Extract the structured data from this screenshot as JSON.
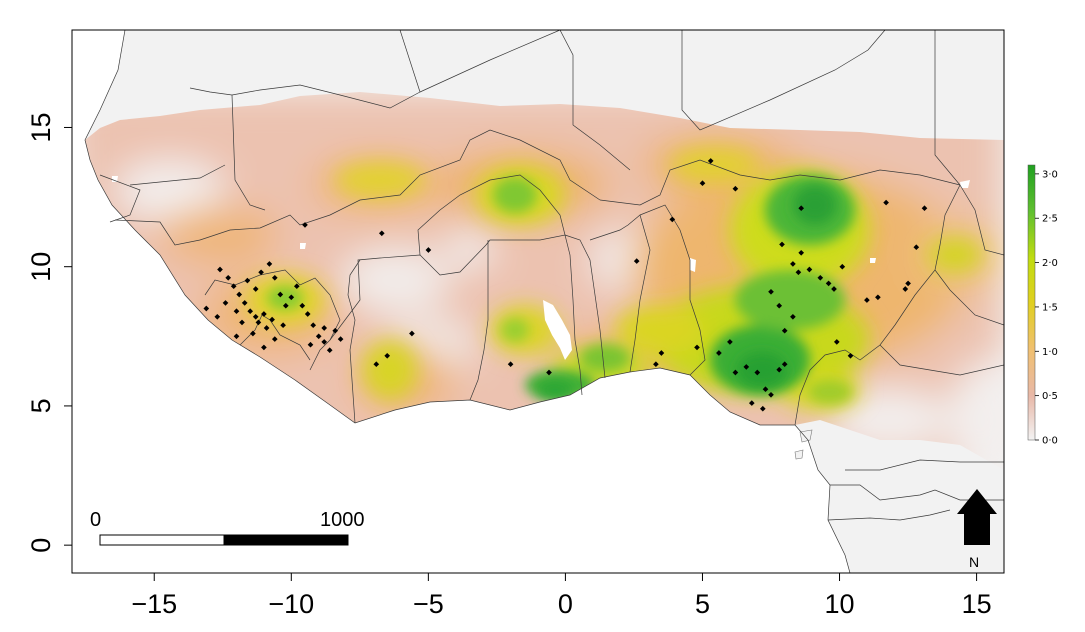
{
  "map": {
    "x_ticks": [
      "−15",
      "−10",
      "−5",
      "0",
      "5",
      "10",
      "15"
    ],
    "x_tick_values": [
      -15,
      -10,
      -5,
      0,
      5,
      10,
      15
    ],
    "y_ticks": [
      "0",
      "5",
      "10",
      "15"
    ],
    "y_tick_values": [
      0,
      5,
      10,
      15
    ],
    "xlim": [
      -18,
      16
    ],
    "ylim": [
      -1,
      18.5
    ]
  },
  "legend": {
    "labels": [
      "3·0",
      "2·5",
      "2·0",
      "1·5",
      "1·0",
      "0·5",
      "0·0"
    ],
    "values": [
      3.0,
      2.5,
      2.0,
      1.5,
      1.0,
      0.5,
      0.0
    ],
    "range": [
      0,
      3.1
    ],
    "colors": [
      "#f3f3f3",
      "#e8b8a8",
      "#f0c070",
      "#e0d020",
      "#c0dc10",
      "#60c030",
      "#20a020"
    ]
  },
  "scale_bar": {
    "start_label": "0",
    "end_label": "1000"
  },
  "north_arrow": {
    "label": "N"
  },
  "points": [
    [
      -13.1,
      8.5
    ],
    [
      -12.6,
      9.9
    ],
    [
      -12.3,
      9.6
    ],
    [
      -12.1,
      9.3
    ],
    [
      -11.9,
      9.0
    ],
    [
      -11.7,
      8.7
    ],
    [
      -11.5,
      8.4
    ],
    [
      -11.3,
      8.2
    ],
    [
      -11.2,
      8.0
    ],
    [
      -11.0,
      8.3
    ],
    [
      -10.9,
      7.8
    ],
    [
      -10.7,
      8.1
    ],
    [
      -11.4,
      7.6
    ],
    [
      -11.8,
      8.0
    ],
    [
      -12.4,
      8.7
    ],
    [
      -12.0,
      8.4
    ],
    [
      -11.6,
      9.5
    ],
    [
      -11.1,
      9.8
    ],
    [
      -10.8,
      10.1
    ],
    [
      -10.6,
      9.6
    ],
    [
      -11.3,
      9.2
    ],
    [
      -10.4,
      9.0
    ],
    [
      -10.2,
      8.6
    ],
    [
      -10.0,
      8.9
    ],
    [
      -9.8,
      9.3
    ],
    [
      -9.6,
      8.6
    ],
    [
      -9.4,
      8.3
    ],
    [
      -9.2,
      7.9
    ],
    [
      -9.0,
      7.5
    ],
    [
      -8.8,
      7.3
    ],
    [
      -8.6,
      7.0
    ],
    [
      -8.4,
      7.7
    ],
    [
      -8.2,
      7.4
    ],
    [
      -8.8,
      7.8
    ],
    [
      -9.3,
      7.2
    ],
    [
      -10.3,
      7.9
    ],
    [
      -10.6,
      7.4
    ],
    [
      -11.0,
      7.1
    ],
    [
      -12.0,
      7.5
    ],
    [
      -12.7,
      8.2
    ],
    [
      -9.5,
      11.5
    ],
    [
      -6.7,
      11.2
    ],
    [
      -5.0,
      10.6
    ],
    [
      -6.5,
      6.8
    ],
    [
      -6.9,
      6.5
    ],
    [
      -5.6,
      7.6
    ],
    [
      -2.0,
      6.5
    ],
    [
      -0.6,
      6.2
    ],
    [
      2.6,
      10.2
    ],
    [
      3.5,
      6.9
    ],
    [
      3.3,
      6.5
    ],
    [
      3.9,
      11.7
    ],
    [
      5.0,
      13.0
    ],
    [
      5.3,
      13.8
    ],
    [
      6.2,
      12.8
    ],
    [
      4.8,
      7.1
    ],
    [
      5.6,
      6.9
    ],
    [
      6.0,
      7.3
    ],
    [
      6.2,
      6.2
    ],
    [
      6.6,
      6.4
    ],
    [
      7.0,
      6.2
    ],
    [
      7.3,
      5.6
    ],
    [
      7.5,
      5.4
    ],
    [
      7.8,
      6.3
    ],
    [
      8.0,
      6.5
    ],
    [
      7.5,
      9.1
    ],
    [
      7.8,
      8.6
    ],
    [
      8.0,
      7.7
    ],
    [
      8.3,
      8.2
    ],
    [
      8.5,
      9.8
    ],
    [
      8.6,
      10.5
    ],
    [
      8.9,
      9.9
    ],
    [
      8.3,
      10.1
    ],
    [
      7.9,
      10.8
    ],
    [
      8.6,
      12.1
    ],
    [
      9.3,
      9.6
    ],
    [
      9.6,
      9.4
    ],
    [
      9.8,
      9.2
    ],
    [
      10.1,
      10.0
    ],
    [
      11.0,
      8.8
    ],
    [
      11.4,
      8.9
    ],
    [
      9.9,
      7.3
    ],
    [
      10.4,
      6.8
    ],
    [
      11.7,
      12.3
    ],
    [
      12.5,
      9.4
    ],
    [
      12.8,
      10.7
    ],
    [
      13.1,
      12.1
    ],
    [
      7.2,
      4.9
    ],
    [
      6.8,
      5.1
    ],
    [
      12.4,
      9.2
    ]
  ]
}
